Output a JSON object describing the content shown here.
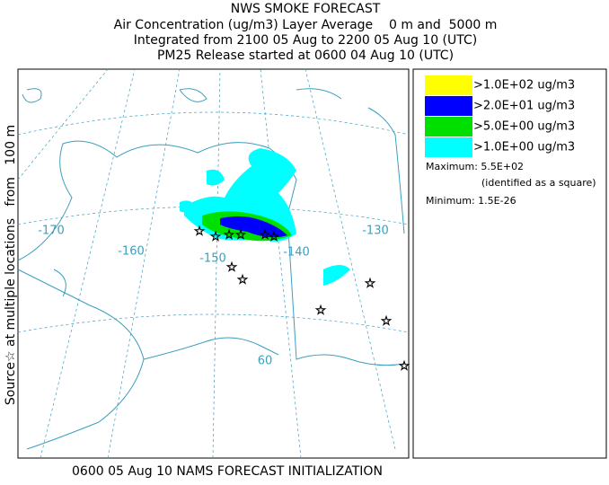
{
  "header": {
    "title": "NWS SMOKE FORECAST",
    "lines": [
      "Air Concentration (ug/m3) Layer Average    0 m and  5000 m",
      "Integrated from 2100 05 Aug to 2200 05 Aug 10 (UTC)",
      "PM25 Release started at 0600 04 Aug 10 (UTC)"
    ]
  },
  "side_label": "Source☆ at multiple locations   from   100 m",
  "footer": "0600 05 Aug 10 NAMS FORECAST INITIALIZATION",
  "map": {
    "labels": [
      "-170",
      "-160",
      "-150",
      "-140",
      "-130",
      "60"
    ]
  },
  "legend": {
    "items": [
      {
        "label": ">1.0E+02 ug/m3",
        "color": "#ffff00"
      },
      {
        "label": ">2.0E+01 ug/m3",
        "color": "#0000ff"
      },
      {
        "label": ">5.0E+00 ug/m3",
        "color": "#00e000"
      },
      {
        "label": ">1.0E+00 ug/m3",
        "color": "#00ffff"
      }
    ],
    "maximum": "Maximum: 5.5E+02",
    "maximum_note": "(identified as a square)",
    "minimum": "Minimum: 1.5E-26"
  }
}
